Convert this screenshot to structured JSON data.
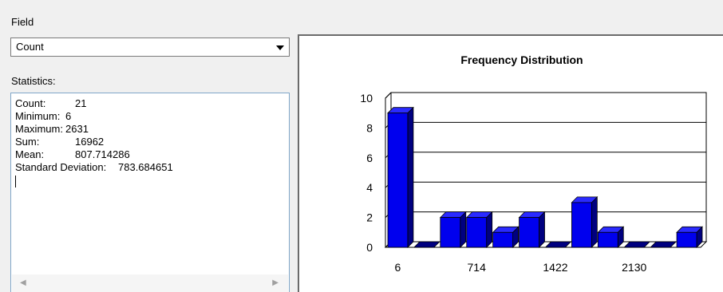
{
  "field": {
    "label": "Field",
    "selected": "Count"
  },
  "statistics": {
    "label": "Statistics:",
    "lines": [
      {
        "name": "Count:",
        "value": "21"
      },
      {
        "name": "Minimum:",
        "value": "6"
      },
      {
        "name": "Maximum:",
        "value": "2631"
      },
      {
        "name": "Sum:",
        "value": "16962"
      },
      {
        "name": "Mean:",
        "value": "807.714286"
      },
      {
        "name": "Standard Deviation:",
        "value": "783.684651"
      }
    ]
  },
  "icons": {
    "dropdown": "chevron-down-icon",
    "scroll_left": "scroll-left-icon",
    "scroll_right": "scroll-right-icon"
  },
  "colors": {
    "bar_face": "#0000ee",
    "bar_dark": "#000080",
    "bar_top": "#2a2aff"
  },
  "chart_data": {
    "type": "bar",
    "title": "Frequency Distribution",
    "xlabel": "",
    "ylabel": "",
    "ylim": [
      0,
      10
    ],
    "yticks": [
      0,
      2,
      4,
      6,
      8,
      10
    ],
    "xtick_labels": [
      "6",
      "714",
      "1422",
      "2130"
    ],
    "values": [
      9,
      0,
      2,
      2,
      1,
      2,
      0,
      3,
      1,
      0,
      0,
      1
    ],
    "grid": true
  }
}
